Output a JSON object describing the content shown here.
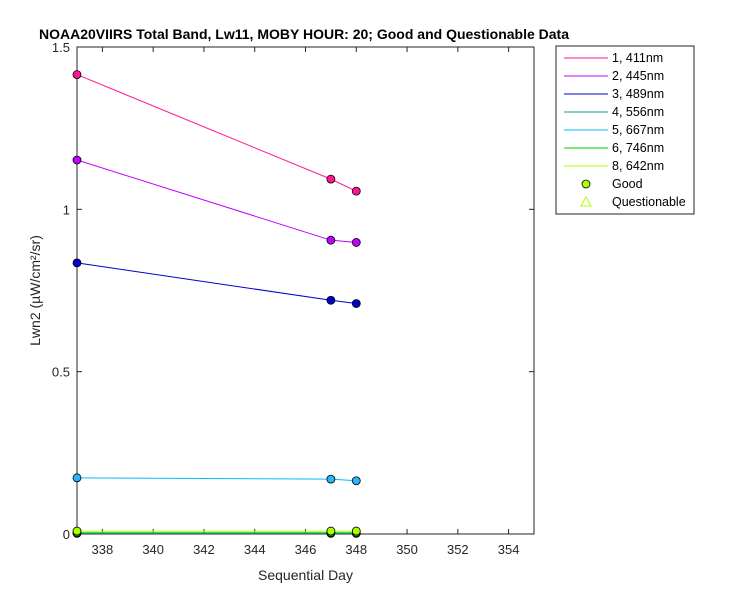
{
  "chart_data": {
    "type": "line",
    "title": "NOAA20VIIRS Total Band, Lw11, MOBY HOUR: 20;  Good and Questionable Data",
    "xlabel": "Sequential Day",
    "ylabel": "Lwn2 (µW/cm²/sr)",
    "xlim": [
      337,
      355
    ],
    "ylim": [
      0,
      1.5
    ],
    "xticks": [
      338,
      340,
      342,
      344,
      346,
      348,
      350,
      352,
      354
    ],
    "yticks": [
      0,
      0.5,
      1,
      1.5
    ],
    "ytick_labels": [
      "0",
      "0.5",
      "1",
      "1.5"
    ],
    "grid": false,
    "legend_position": "outside-top-right",
    "x": [
      337,
      347,
      348
    ],
    "series": [
      {
        "name": "1, 411nm",
        "color": "#ff1493",
        "marker_fill": "#ff1493",
        "values": [
          1.415,
          1.093,
          1.056
        ]
      },
      {
        "name": "2, 445nm",
        "color": "#bf00ff",
        "marker_fill": "#bf00ff",
        "values": [
          1.152,
          0.905,
          0.898
        ]
      },
      {
        "name": "3, 489nm",
        "color": "#0000cd",
        "marker_fill": "#0000cd",
        "values": [
          0.835,
          0.72,
          0.71
        ]
      },
      {
        "name": "4, 556nm",
        "color": "#00a5a5",
        "marker_fill": "#00bcd4",
        "values": [
          0.002,
          0.002,
          0.002
        ]
      },
      {
        "name": "5, 667nm",
        "color": "#00bfff",
        "marker_fill": "#29b6f6",
        "values": [
          0.173,
          0.169,
          0.164
        ]
      },
      {
        "name": "6, 746nm",
        "color": "#00cc00",
        "marker_fill": "#00cc00",
        "values": [
          0.004,
          0.004,
          0.004
        ]
      },
      {
        "name": "8, 642nm",
        "color": "#aaff00",
        "marker_fill": "#aaff00",
        "values": [
          0.009,
          0.009,
          0.009
        ]
      }
    ],
    "legend_markers": [
      {
        "label": "Good",
        "symbol": "circle",
        "color": "#aaff00"
      },
      {
        "label": "Questionable",
        "symbol": "triangle",
        "color": "#aaff00"
      }
    ]
  }
}
